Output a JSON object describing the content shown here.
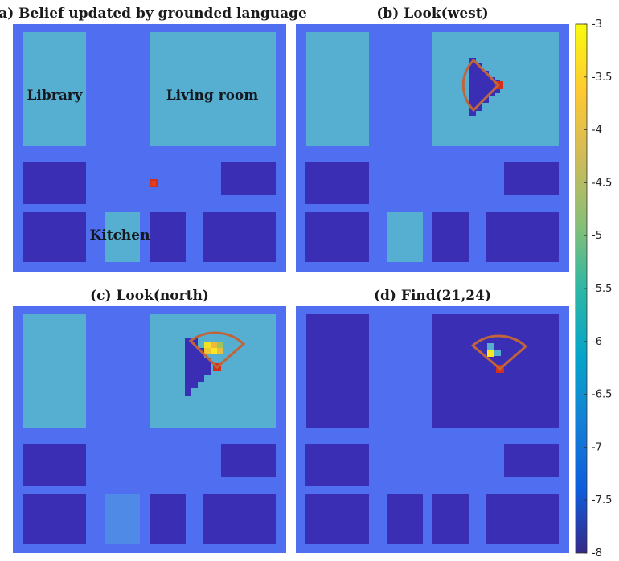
{
  "colors": {
    "background": "#4f6ef0",
    "room_light": "#56aed0",
    "room_mid": "#4e8ae6",
    "room_dark": "#3a2fb4",
    "robot": "#d2301a",
    "fov": "#c0643c"
  },
  "chart_data": {
    "type": "heatmap",
    "colorbar": {
      "ticks": [
        "-3",
        "-3.5",
        "-4",
        "-4.5",
        "-5",
        "-5.5",
        "-6",
        "-6.5",
        "-7",
        "-7.5",
        "-8"
      ],
      "range": [
        -8,
        -3
      ],
      "colormap": "parula"
    },
    "panels": [
      {
        "id": "a",
        "title": "(a) Belief updated by grounded language",
        "labels": [
          {
            "text": "Library",
            "room": "library"
          },
          {
            "text": "Living room",
            "room": "living_room"
          },
          {
            "text": "Kitchen",
            "room": "kitchen"
          }
        ],
        "rooms": {
          "library": "light",
          "living_room": "light",
          "left_mid": "dark",
          "right_mid": "dark",
          "bottom_left": "dark",
          "kitchen": "light",
          "bottom_small": "dark",
          "bottom_right": "dark"
        },
        "fov": null,
        "belief_cells": []
      },
      {
        "id": "b",
        "title": "(b) Look(west)",
        "labels": [],
        "rooms": {
          "library": "light",
          "living_room": "light",
          "left_mid": "dark",
          "right_mid": "dark",
          "bottom_left": "dark",
          "kitchen": "light",
          "bottom_small": "dark",
          "bottom_right": "dark"
        },
        "fov": "west",
        "belief_cells": []
      },
      {
        "id": "c",
        "title": "(c) Look(north)",
        "labels": [],
        "rooms": {
          "library": "light",
          "living_room": "light",
          "left_mid": "dark",
          "right_mid": "dark",
          "bottom_left": "dark",
          "kitchen": "mid",
          "bottom_small": "dark",
          "bottom_right": "dark"
        },
        "fov": "north",
        "belief_cells": [
          {
            "color": "#f4e124"
          },
          {
            "color": "#f0b93c"
          },
          {
            "color": "#9fc45a"
          },
          {
            "color": "#f2c832"
          },
          {
            "color": "#fde725"
          },
          {
            "color": "#e8c040"
          },
          {
            "color": "#5ab4c8"
          }
        ]
      },
      {
        "id": "d",
        "title": "(d) Find(21,24)",
        "labels": [],
        "rooms": {
          "library": "dark",
          "living_room": "dark",
          "left_mid": "dark",
          "right_mid": "dark",
          "bottom_left": "dark",
          "kitchen": "dark",
          "bottom_small": "dark",
          "bottom_right": "dark"
        },
        "fov": "north",
        "belief_cells": [
          {
            "color": "#56aed0"
          },
          {
            "color": "#fde725"
          },
          {
            "color": "#56aed0"
          }
        ]
      }
    ]
  }
}
